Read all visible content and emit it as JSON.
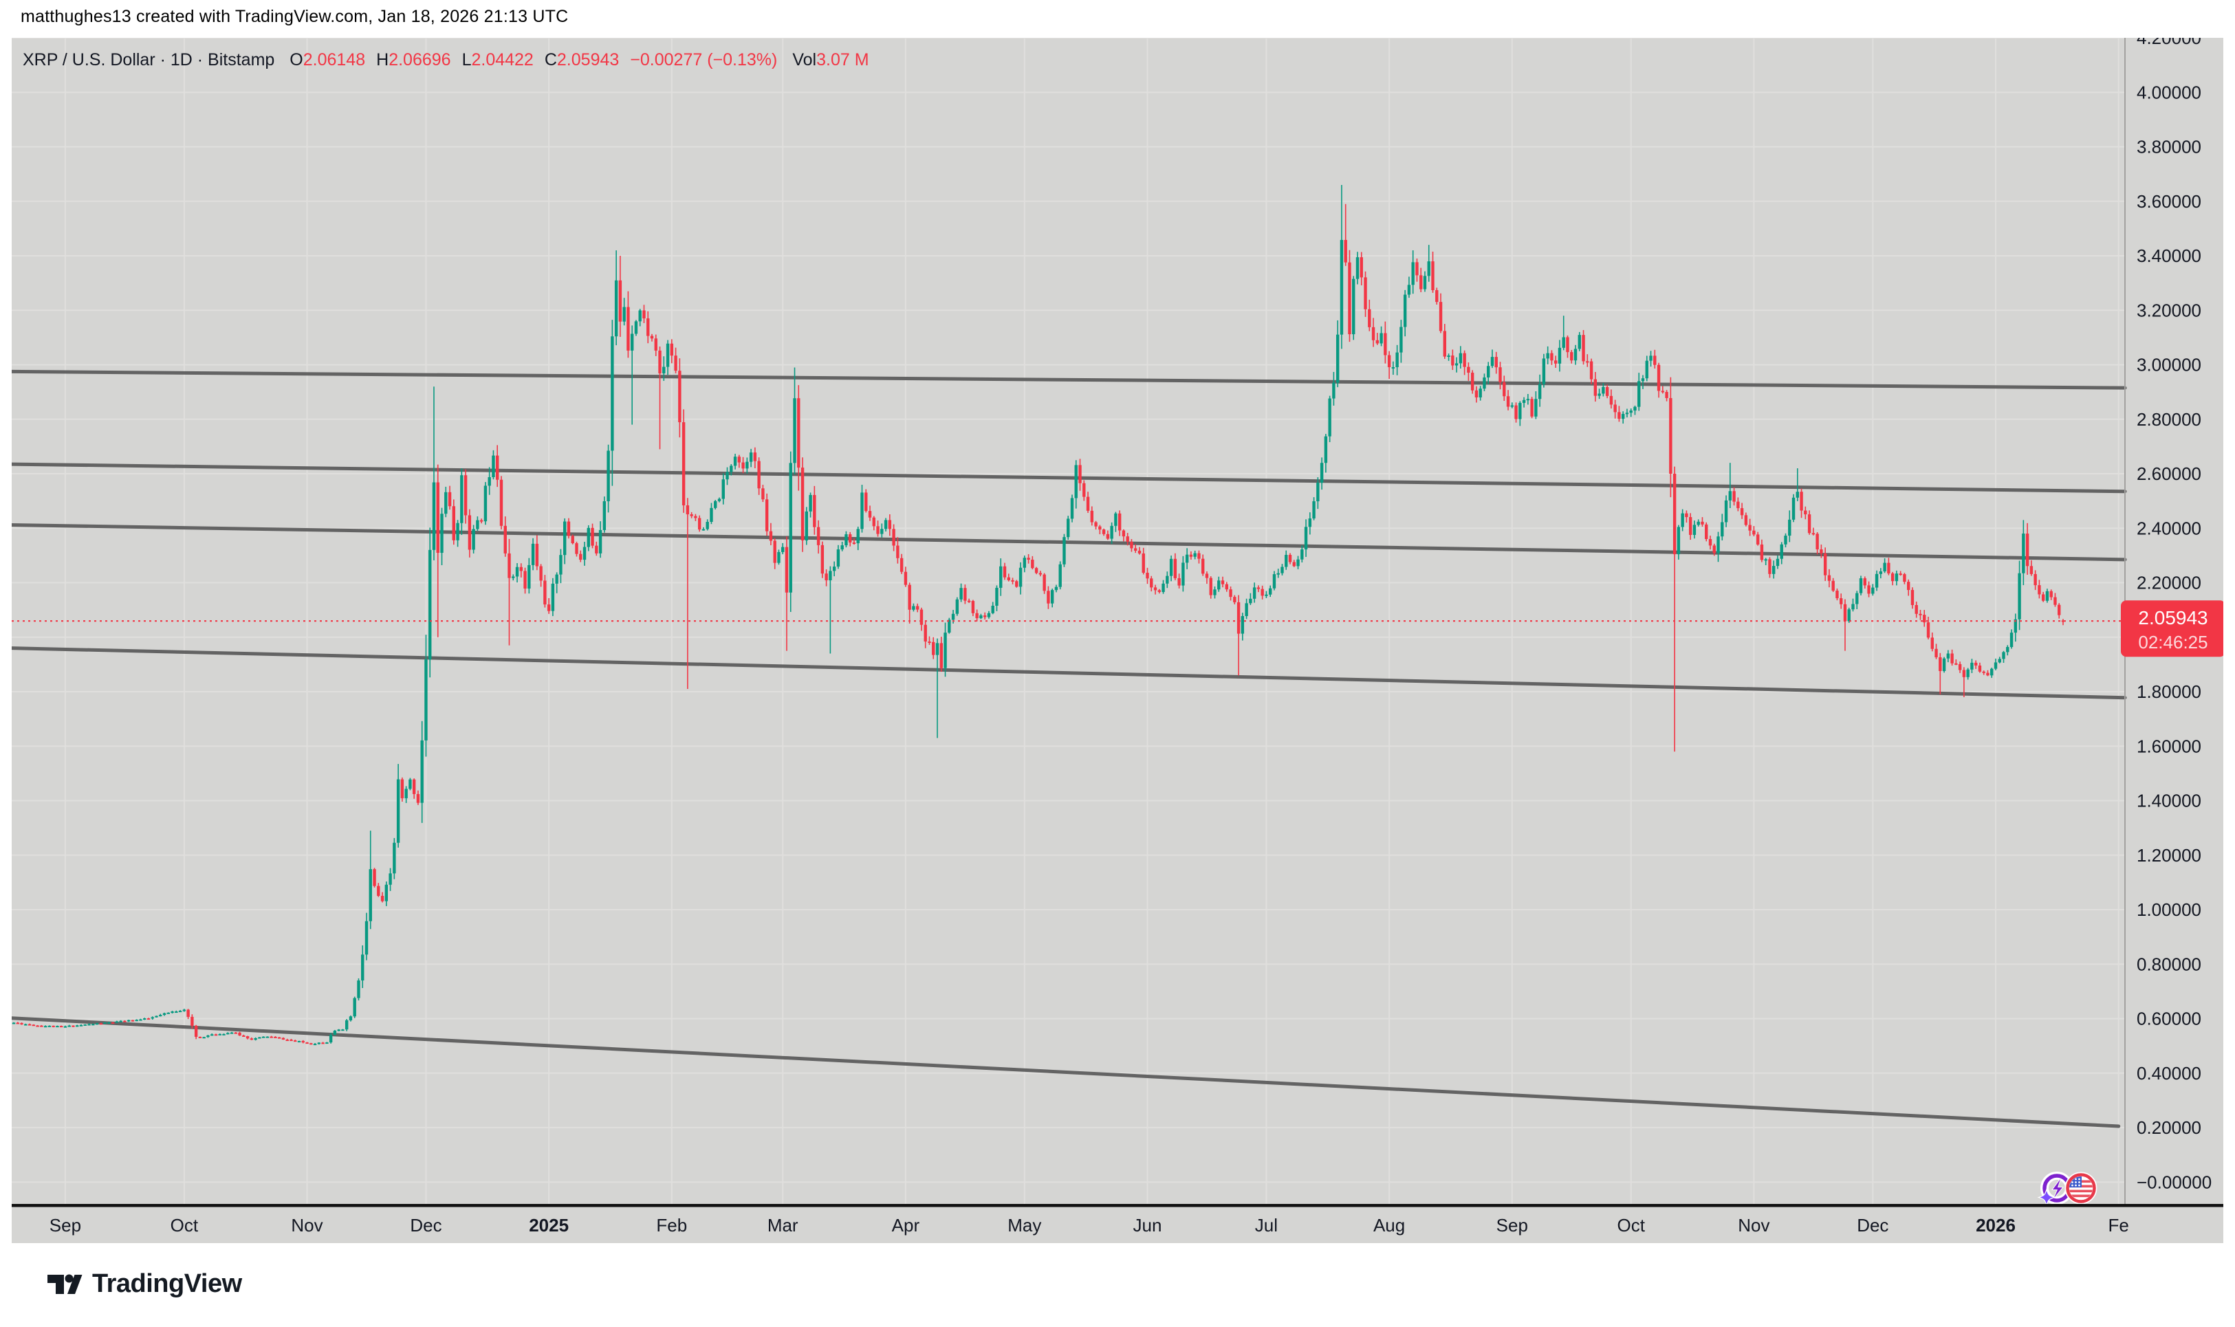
{
  "attribution": "matthughes13 created with TradingView.com, Jan 18, 2026 21:13 UTC",
  "legend": {
    "title": "XRP / U.S. Dollar · 1D · Bitstamp",
    "open_label": "O",
    "open": "2.06148",
    "high_label": "H",
    "high": "2.06696",
    "low_label": "L",
    "low": "2.04422",
    "close_label": "C",
    "close": "2.05943",
    "change": "−0.00277 (−0.13%)",
    "volume_label": "Vol",
    "volume": "3.07 M"
  },
  "footer": {
    "brand": "TradingView"
  },
  "colors": {
    "chart_background": "#d5d5d3",
    "grid": "#e0dfdd",
    "candle_up": "#089981",
    "candle_down": "#f23645",
    "trendline": "#575757",
    "axis_text": "#131722",
    "separator": "#111111",
    "axis_border": "#a2a19f",
    "last_price_line": "#f23645",
    "badge_background": "#f23645",
    "badge_text": "#ffffff"
  },
  "chart_data": {
    "type": "candlestick",
    "symbol": "XRP / U.S. Dollar",
    "interval": "1D",
    "exchange": "Bitstamp",
    "start_date": "2024-08-19",
    "end_date": "2026-01-18",
    "last_price": 2.05943,
    "countdown": "02:46:25",
    "last_candle": {
      "open": 2.06148,
      "high": 2.06696,
      "low": 2.04422,
      "close": 2.05943
    },
    "y_axis": {
      "max": 4.2,
      "min": 0.0,
      "tick_step": 0.2,
      "tick_labels": [
        "4.20000",
        "4.00000",
        "3.80000",
        "3.60000",
        "3.40000",
        "3.20000",
        "3.00000",
        "2.80000",
        "2.60000",
        "2.40000",
        "2.20000",
        "2.00000",
        "1.80000",
        "1.60000",
        "1.40000",
        "1.20000",
        "1.00000",
        "0.80000",
        "0.60000",
        "0.40000",
        "0.20000",
        "−0.00000"
      ]
    },
    "x_axis": {
      "ticks": [
        {
          "label": "Sep",
          "day": 13,
          "bold": false
        },
        {
          "label": "Oct",
          "day": 43,
          "bold": false
        },
        {
          "label": "Nov",
          "day": 74,
          "bold": false
        },
        {
          "label": "Dec",
          "day": 104,
          "bold": false
        },
        {
          "label": "2025",
          "day": 135,
          "bold": true
        },
        {
          "label": "Feb",
          "day": 166,
          "bold": false
        },
        {
          "label": "Mar",
          "day": 194,
          "bold": false
        },
        {
          "label": "Apr",
          "day": 225,
          "bold": false
        },
        {
          "label": "May",
          "day": 255,
          "bold": false
        },
        {
          "label": "Jun",
          "day": 286,
          "bold": false
        },
        {
          "label": "Jul",
          "day": 316,
          "bold": false
        },
        {
          "label": "Aug",
          "day": 347,
          "bold": false
        },
        {
          "label": "Sep",
          "day": 378,
          "bold": false
        },
        {
          "label": "Oct",
          "day": 408,
          "bold": false
        },
        {
          "label": "Nov",
          "day": 439,
          "bold": false
        },
        {
          "label": "Dec",
          "day": 469,
          "bold": false
        },
        {
          "label": "2026",
          "day": 500,
          "bold": true
        },
        {
          "label": "Fe",
          "day": 531,
          "bold": false
        }
      ]
    },
    "trendlines": [
      {
        "p1": 2.975,
        "p2": 2.915,
        "x1_frac": 0.0,
        "x2_frac": 1.0
      },
      {
        "p1": 2.635,
        "p2": 2.535,
        "x1_frac": 0.0,
        "x2_frac": 1.0
      },
      {
        "p1": 2.412,
        "p2": 2.285,
        "x1_frac": 0.0,
        "x2_frac": 1.0
      },
      {
        "p1": 1.96,
        "p2": 1.778,
        "x1_frac": 0.0,
        "x2_frac": 1.0
      },
      {
        "p1": 0.602,
        "p2": 0.205,
        "x1_frac": 0.0,
        "x2_frac": 0.997
      }
    ],
    "render_seed": 11,
    "anchors": [
      [
        0,
        0.585
      ],
      [
        6,
        0.575
      ],
      [
        12,
        0.57
      ],
      [
        18,
        0.578
      ],
      [
        26,
        0.588
      ],
      [
        34,
        0.6
      ],
      [
        40,
        0.625
      ],
      [
        43,
        0.635
      ],
      [
        44,
        0.6
      ],
      [
        46,
        0.53
      ],
      [
        50,
        0.54
      ],
      [
        55,
        0.55
      ],
      [
        60,
        0.525
      ],
      [
        64,
        0.535
      ],
      [
        70,
        0.52
      ],
      [
        75,
        0.508
      ],
      [
        79,
        0.515
      ],
      [
        80,
        0.55
      ],
      [
        83,
        0.56
      ],
      [
        85,
        0.61
      ],
      [
        87,
        0.73
      ],
      [
        89,
        0.95
      ],
      [
        90,
        1.12
      ],
      [
        91,
        1.08
      ],
      [
        93,
        1.02
      ],
      [
        95,
        1.13
      ],
      [
        96,
        1.25
      ],
      [
        97,
        1.45
      ],
      [
        98,
        1.4
      ],
      [
        100,
        1.47
      ],
      [
        102,
        1.4
      ],
      [
        104,
        1.9
      ],
      [
        105,
        2.25
      ],
      [
        106,
        2.62
      ],
      [
        107,
        2.3
      ],
      [
        108,
        2.45
      ],
      [
        109,
        2.55
      ],
      [
        111,
        2.35
      ],
      [
        113,
        2.56
      ],
      [
        115,
        2.36
      ],
      [
        118,
        2.44
      ],
      [
        120,
        2.62
      ],
      [
        121,
        2.7
      ],
      [
        122,
        2.6
      ],
      [
        124,
        2.32
      ],
      [
        125,
        2.18
      ],
      [
        127,
        2.28
      ],
      [
        129,
        2.18
      ],
      [
        131,
        2.33
      ],
      [
        133,
        2.2
      ],
      [
        135,
        2.08
      ],
      [
        137,
        2.25
      ],
      [
        139,
        2.4
      ],
      [
        141,
        2.35
      ],
      [
        143,
        2.28
      ],
      [
        145,
        2.38
      ],
      [
        147,
        2.32
      ],
      [
        149,
        2.52
      ],
      [
        150,
        2.75
      ],
      [
        151,
        3.1
      ],
      [
        152,
        3.28
      ],
      [
        153,
        3.14
      ],
      [
        154,
        3.22
      ],
      [
        155,
        3.08
      ],
      [
        156,
        3.14
      ],
      [
        158,
        3.2
      ],
      [
        160,
        3.12
      ],
      [
        162,
        3.06
      ],
      [
        163,
        2.92
      ],
      [
        165,
        3.08
      ],
      [
        167,
        2.98
      ],
      [
        168,
        2.82
      ],
      [
        169,
        2.52
      ],
      [
        170,
        2.46
      ],
      [
        172,
        2.44
      ],
      [
        174,
        2.38
      ],
      [
        176,
        2.46
      ],
      [
        178,
        2.52
      ],
      [
        180,
        2.6
      ],
      [
        182,
        2.68
      ],
      [
        184,
        2.62
      ],
      [
        186,
        2.7
      ],
      [
        188,
        2.55
      ],
      [
        190,
        2.4
      ],
      [
        192,
        2.28
      ],
      [
        194,
        2.35
      ],
      [
        195,
        2.15
      ],
      [
        196,
        2.55
      ],
      [
        197,
        2.9
      ],
      [
        198,
        2.55
      ],
      [
        199,
        2.4
      ],
      [
        201,
        2.5
      ],
      [
        203,
        2.32
      ],
      [
        205,
        2.2
      ],
      [
        206,
        2.24
      ],
      [
        208,
        2.32
      ],
      [
        210,
        2.38
      ],
      [
        212,
        2.34
      ],
      [
        214,
        2.5
      ],
      [
        216,
        2.44
      ],
      [
        218,
        2.38
      ],
      [
        220,
        2.44
      ],
      [
        222,
        2.35
      ],
      [
        224,
        2.22
      ],
      [
        226,
        2.12
      ],
      [
        228,
        2.1
      ],
      [
        230,
        2.0
      ],
      [
        232,
        1.94
      ],
      [
        233,
        1.97
      ],
      [
        234,
        1.9
      ],
      [
        235,
        2.02
      ],
      [
        237,
        2.08
      ],
      [
        239,
        2.16
      ],
      [
        241,
        2.12
      ],
      [
        243,
        2.08
      ],
      [
        245,
        2.07
      ],
      [
        247,
        2.12
      ],
      [
        249,
        2.24
      ],
      [
        251,
        2.21
      ],
      [
        253,
        2.19
      ],
      [
        255,
        2.3
      ],
      [
        257,
        2.24
      ],
      [
        259,
        2.23
      ],
      [
        261,
        2.14
      ],
      [
        263,
        2.2
      ],
      [
        265,
        2.34
      ],
      [
        267,
        2.48
      ],
      [
        268,
        2.6
      ],
      [
        270,
        2.5
      ],
      [
        272,
        2.44
      ],
      [
        274,
        2.39
      ],
      [
        276,
        2.37
      ],
      [
        278,
        2.44
      ],
      [
        280,
        2.38
      ],
      [
        282,
        2.32
      ],
      [
        284,
        2.3
      ],
      [
        286,
        2.2
      ],
      [
        288,
        2.16
      ],
      [
        290,
        2.2
      ],
      [
        292,
        2.27
      ],
      [
        294,
        2.2
      ],
      [
        296,
        2.3
      ],
      [
        298,
        2.31
      ],
      [
        300,
        2.24
      ],
      [
        302,
        2.17
      ],
      [
        304,
        2.2
      ],
      [
        306,
        2.17
      ],
      [
        308,
        2.12
      ],
      [
        309,
        2.0
      ],
      [
        311,
        2.12
      ],
      [
        313,
        2.19
      ],
      [
        315,
        2.14
      ],
      [
        317,
        2.19
      ],
      [
        319,
        2.24
      ],
      [
        321,
        2.29
      ],
      [
        323,
        2.27
      ],
      [
        325,
        2.33
      ],
      [
        327,
        2.44
      ],
      [
        329,
        2.56
      ],
      [
        331,
        2.74
      ],
      [
        333,
        2.94
      ],
      [
        334,
        3.08
      ],
      [
        335,
        3.46
      ],
      [
        336,
        3.4
      ],
      [
        337,
        3.18
      ],
      [
        339,
        3.38
      ],
      [
        341,
        3.2
      ],
      [
        343,
        3.06
      ],
      [
        345,
        3.14
      ],
      [
        347,
        2.96
      ],
      [
        349,
        3.06
      ],
      [
        351,
        3.24
      ],
      [
        353,
        3.36
      ],
      [
        355,
        3.28
      ],
      [
        357,
        3.38
      ],
      [
        359,
        3.2
      ],
      [
        361,
        3.06
      ],
      [
        363,
        2.98
      ],
      [
        365,
        3.06
      ],
      [
        367,
        2.96
      ],
      [
        369,
        2.88
      ],
      [
        371,
        2.96
      ],
      [
        373,
        3.04
      ],
      [
        375,
        2.93
      ],
      [
        377,
        2.86
      ],
      [
        379,
        2.81
      ],
      [
        381,
        2.89
      ],
      [
        383,
        2.83
      ],
      [
        385,
        2.96
      ],
      [
        387,
        3.04
      ],
      [
        389,
        2.99
      ],
      [
        391,
        3.09
      ],
      [
        393,
        3.03
      ],
      [
        395,
        3.09
      ],
      [
        397,
        2.99
      ],
      [
        399,
        2.89
      ],
      [
        401,
        2.93
      ],
      [
        403,
        2.86
      ],
      [
        405,
        2.79
      ],
      [
        407,
        2.83
      ],
      [
        409,
        2.86
      ],
      [
        411,
        2.97
      ],
      [
        413,
        3.03
      ],
      [
        415,
        2.93
      ],
      [
        417,
        2.86
      ],
      [
        419,
        2.38
      ],
      [
        421,
        2.46
      ],
      [
        423,
        2.39
      ],
      [
        425,
        2.43
      ],
      [
        427,
        2.36
      ],
      [
        429,
        2.3
      ],
      [
        431,
        2.44
      ],
      [
        433,
        2.54
      ],
      [
        435,
        2.49
      ],
      [
        437,
        2.43
      ],
      [
        439,
        2.36
      ],
      [
        441,
        2.3
      ],
      [
        443,
        2.24
      ],
      [
        445,
        2.3
      ],
      [
        447,
        2.36
      ],
      [
        449,
        2.5
      ],
      [
        450,
        2.55
      ],
      [
        452,
        2.43
      ],
      [
        454,
        2.36
      ],
      [
        456,
        2.29
      ],
      [
        458,
        2.2
      ],
      [
        460,
        2.14
      ],
      [
        462,
        2.07
      ],
      [
        464,
        2.14
      ],
      [
        466,
        2.2
      ],
      [
        468,
        2.17
      ],
      [
        470,
        2.22
      ],
      [
        472,
        2.26
      ],
      [
        474,
        2.2
      ],
      [
        476,
        2.24
      ],
      [
        478,
        2.17
      ],
      [
        480,
        2.1
      ],
      [
        482,
        2.04
      ],
      [
        484,
        1.97
      ],
      [
        486,
        1.89
      ],
      [
        488,
        1.93
      ],
      [
        490,
        1.89
      ],
      [
        492,
        1.86
      ],
      [
        494,
        1.91
      ],
      [
        496,
        1.88
      ],
      [
        498,
        1.86
      ],
      [
        500,
        1.9
      ],
      [
        502,
        1.94
      ],
      [
        504,
        2.0
      ],
      [
        505,
        2.08
      ],
      [
        506,
        2.2
      ],
      [
        507,
        2.4
      ],
      [
        508,
        2.28
      ],
      [
        509,
        2.22
      ],
      [
        510,
        2.19
      ],
      [
        511,
        2.14
      ],
      [
        512,
        2.12
      ],
      [
        513,
        2.16
      ],
      [
        514,
        2.14
      ],
      [
        515,
        2.11
      ],
      [
        516,
        2.09
      ],
      [
        517,
        2.05943
      ]
    ],
    "wick_overrides": {
      "90": {
        "h": 1.29
      },
      "106": {
        "h": 2.92
      },
      "107": {
        "l": 2.0
      },
      "125": {
        "l": 1.97
      },
      "152": {
        "h": 3.42
      },
      "153": {
        "h": 3.4
      },
      "156": {
        "l": 2.78
      },
      "163": {
        "l": 2.69
      },
      "170": {
        "l": 1.81
      },
      "195": {
        "l": 1.95
      },
      "197": {
        "h": 2.99
      },
      "206": {
        "l": 1.94
      },
      "226": {
        "l": 2.05
      },
      "233": {
        "l": 1.63
      },
      "268": {
        "h": 2.65
      },
      "309": {
        "l": 1.86
      },
      "335": {
        "h": 3.66
      },
      "336": {
        "h": 3.59
      },
      "353": {
        "h": 3.42
      },
      "357": {
        "h": 3.44
      },
      "391": {
        "h": 3.18
      },
      "419": {
        "l": 1.58
      },
      "433": {
        "h": 2.64
      },
      "450": {
        "h": 2.62
      },
      "462": {
        "l": 1.95
      },
      "486": {
        "l": 1.79
      },
      "492": {
        "l": 1.78
      },
      "507": {
        "h": 2.43
      }
    },
    "event_icon": {
      "name": "us-economic-event",
      "flag": "US"
    }
  }
}
